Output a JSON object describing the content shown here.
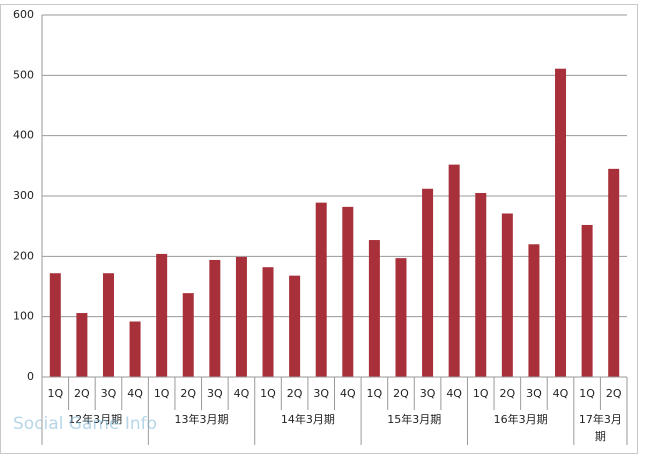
{
  "chart_data": {
    "type": "bar",
    "groups": [
      {
        "label": "12年3月期",
        "categories": [
          "1Q",
          "2Q",
          "3Q",
          "4Q"
        ]
      },
      {
        "label": "13年3月期",
        "categories": [
          "1Q",
          "2Q",
          "3Q",
          "4Q"
        ]
      },
      {
        "label": "14年3月期",
        "categories": [
          "1Q",
          "2Q",
          "3Q",
          "4Q"
        ]
      },
      {
        "label": "15年3月期",
        "categories": [
          "1Q",
          "2Q",
          "3Q",
          "4Q"
        ]
      },
      {
        "label": "16年3月期",
        "categories": [
          "1Q",
          "2Q",
          "3Q",
          "4Q"
        ]
      },
      {
        "label": "17年3月期",
        "categories": [
          "1Q",
          "2Q"
        ]
      }
    ],
    "values": [
      172,
      106,
      172,
      92,
      204,
      139,
      194,
      199,
      182,
      168,
      289,
      282,
      227,
      197,
      312,
      352,
      305,
      271,
      220,
      511,
      252,
      345
    ],
    "color": "#a8303a",
    "ylim": [
      0,
      600
    ],
    "yticks": [
      0,
      100,
      200,
      300,
      400,
      500,
      600
    ],
    "grid": true,
    "watermark": "Social Game Info"
  }
}
